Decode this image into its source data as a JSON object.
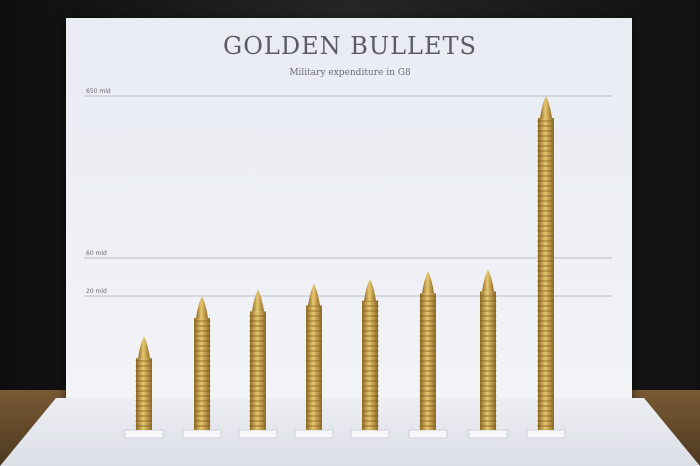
{
  "chart_data": {
    "type": "bar",
    "title": "GOLDEN BULLETS",
    "subtitle": "Military expenditure in G8",
    "y_ticks": [
      "20 mld",
      "60 mld",
      "650 mld"
    ],
    "y_tick_values": [
      20,
      60,
      650
    ],
    "series": [
      {
        "values": [
          14,
          20,
          27,
          33,
          38,
          46,
          48,
          650
        ]
      }
    ],
    "grid": true,
    "colors": {
      "gold": "#c89a3c",
      "gold_dark": "#8e6a24",
      "gold_light": "#e8c770"
    }
  }
}
